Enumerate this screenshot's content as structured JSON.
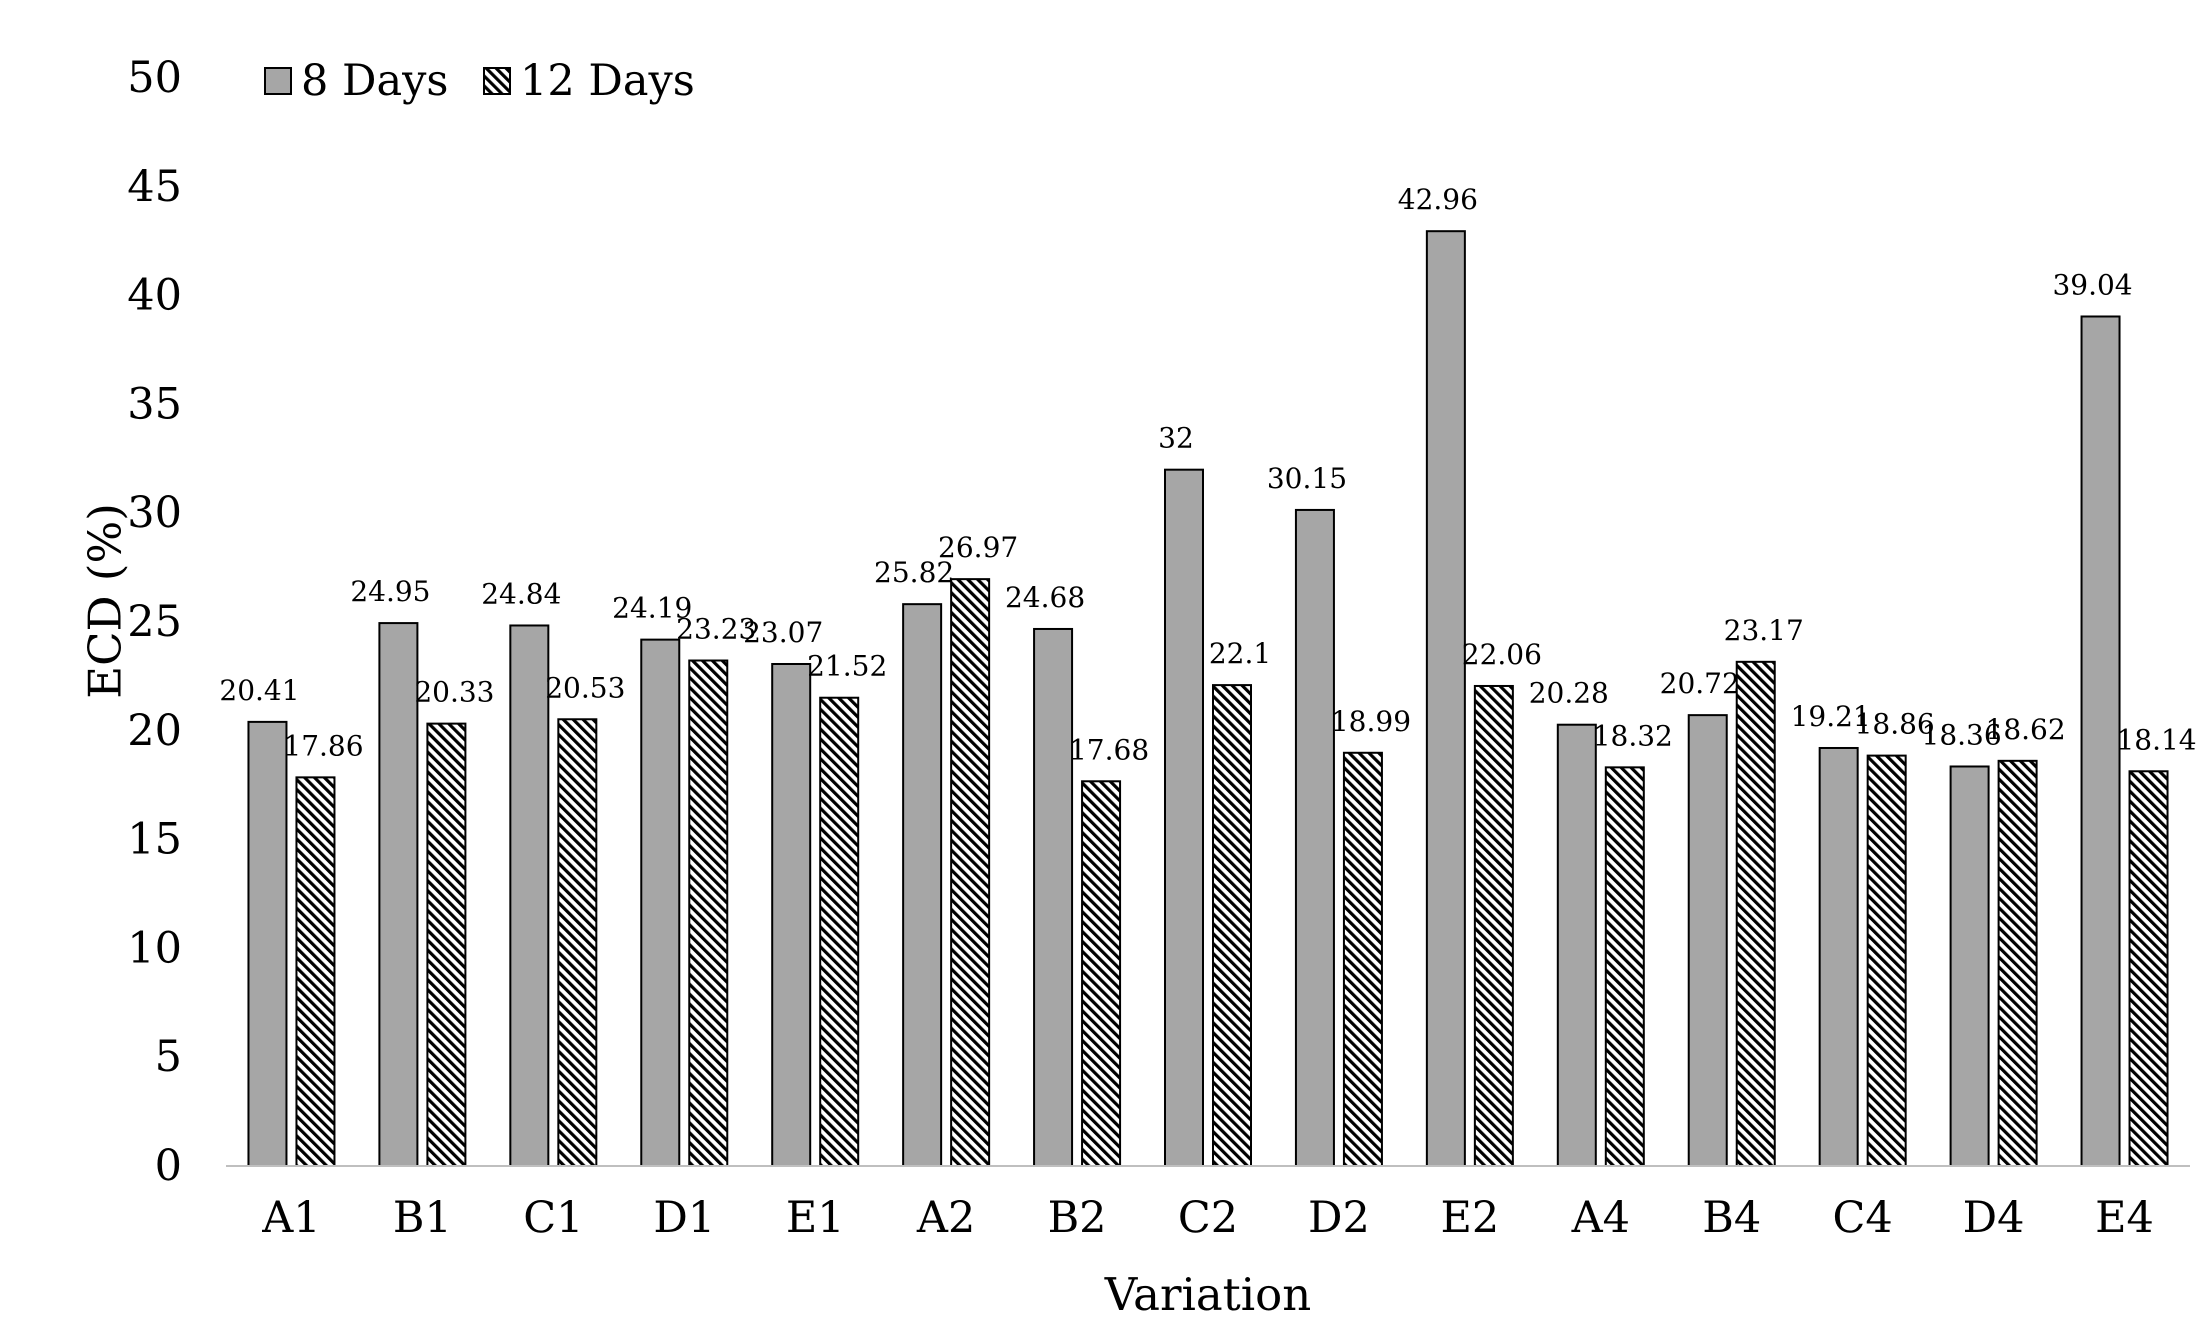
{
  "chart_data": {
    "type": "bar",
    "title": "",
    "xlabel": "Variation",
    "ylabel": "ECD (%)",
    "ylim": [
      0,
      50
    ],
    "yticks": [
      0,
      5,
      10,
      15,
      20,
      25,
      30,
      35,
      40,
      45,
      50
    ],
    "grid": false,
    "legend_position": "top-left",
    "categories": [
      "A1",
      "B1",
      "C1",
      "D1",
      "E1",
      "A2",
      "B2",
      "C2",
      "D2",
      "E2",
      "A4",
      "B4",
      "C4",
      "D4",
      "E4"
    ],
    "series": [
      {
        "name": "8 Days",
        "fill": "solid-gray",
        "color": "#a6a6a6",
        "values": [
          20.41,
          24.95,
          24.84,
          24.19,
          23.07,
          25.82,
          24.68,
          32,
          30.15,
          42.96,
          20.28,
          20.72,
          19.21,
          18.36,
          39.04
        ],
        "labels": [
          "20.41",
          "24.95",
          "24.84",
          "24.19",
          "23.07",
          "25.82",
          "24.68",
          "32",
          "30.15",
          "42.96",
          "20.28",
          "20.72",
          "19.21",
          "18.36",
          "39.04"
        ]
      },
      {
        "name": "12 Days",
        "fill": "diagonal-hatch",
        "color": "#ffffff",
        "values": [
          17.86,
          20.33,
          20.53,
          23.23,
          21.52,
          26.97,
          17.68,
          22.1,
          18.99,
          22.06,
          18.32,
          23.17,
          18.86,
          18.62,
          18.14
        ],
        "labels": [
          "17.86",
          "20.33",
          "20.53",
          "23.23",
          "21.52",
          "26.97",
          "17.68",
          "22.1",
          "18.99",
          "22.06",
          "18.32",
          "23.17",
          "18.86",
          "18.62",
          "18.14"
        ]
      }
    ]
  }
}
